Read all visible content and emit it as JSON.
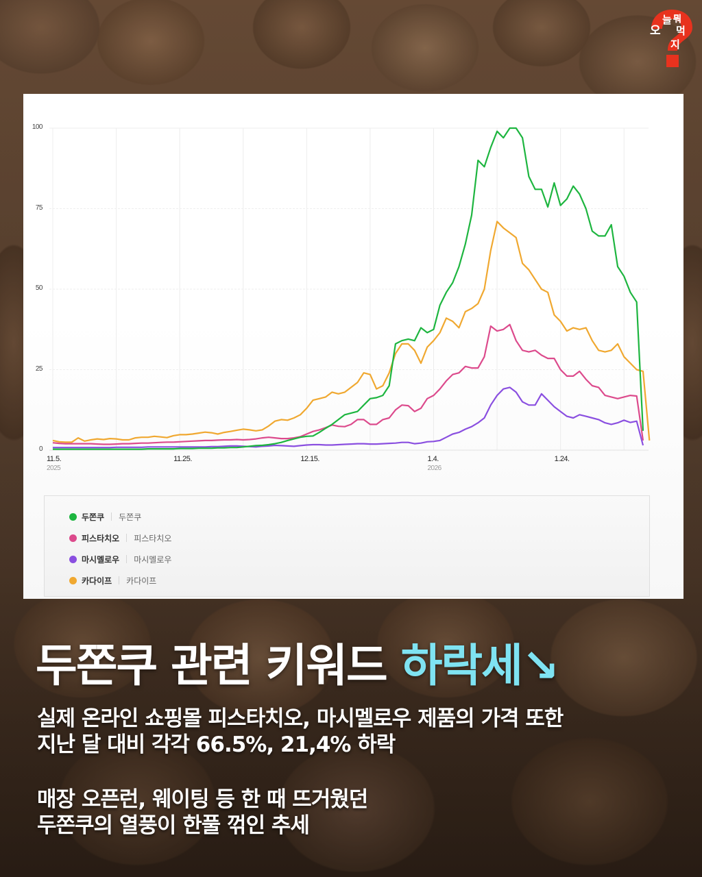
{
  "brand": {
    "logo_text": [
      "오",
      "늘",
      "뭐",
      "먹",
      "지"
    ],
    "logo_color": "#e8321e"
  },
  "headline": {
    "main": "두쫀쿠 관련 키워드 ",
    "accent": "하락세↘",
    "accent_color": "#7fe3f2"
  },
  "body": {
    "paragraph1": [
      "실제 온라인 쇼핑몰 피스타치오, 마시멜로우 제품의 가격 또한",
      "지난 달 대비 각각 66.5%, 21,4% 하락"
    ],
    "paragraph2": [
      "매장 오픈런, 웨이팅 등 한 때 뜨거웠던",
      "두쫀쿠의 열풍이 한풀 꺾인 추세"
    ]
  },
  "legend": [
    {
      "name": "두쫀쿠",
      "sub": "두쫀쿠",
      "color": "#1db53f"
    },
    {
      "name": "피스타치오",
      "sub": "피스타치오",
      "color": "#dc4a8c"
    },
    {
      "name": "마시멜로우",
      "sub": "마시멜로우",
      "color": "#8a4fe0"
    },
    {
      "name": "카다이프",
      "sub": "카다이프",
      "color": "#f0a830"
    }
  ],
  "chart_data": {
    "type": "line",
    "title": "",
    "xlabel": "",
    "ylabel": "",
    "ylim": [
      0,
      100
    ],
    "yticks": [
      "100",
      "75",
      "50",
      "25",
      "0"
    ],
    "xticks": [
      {
        "label": "11.5.",
        "year": "2025"
      },
      {
        "label": "11.25.",
        "year": ""
      },
      {
        "label": "12.15.",
        "year": ""
      },
      {
        "label": "1.4.",
        "year": "2026"
      },
      {
        "label": "1.24.",
        "year": ""
      }
    ],
    "grid": true,
    "legend_position": "bottom",
    "x_start": "2025-11-05",
    "x_step_days": 1,
    "series": [
      {
        "name": "두쫀쿠",
        "color": "#1db53f",
        "values": [
          0.3,
          0.3,
          0.3,
          0.3,
          0.3,
          0.3,
          0.3,
          0.3,
          0.3,
          0.3,
          0.3,
          0.3,
          0.3,
          0.3,
          0.3,
          0.4,
          0.4,
          0.4,
          0.4,
          0.4,
          0.5,
          0.5,
          0.5,
          0.6,
          0.6,
          0.6,
          0.7,
          0.7,
          0.8,
          0.8,
          1.0,
          1.2,
          1.4,
          1.5,
          1.7,
          2.0,
          2.4,
          3.0,
          3.5,
          4.0,
          4.3,
          4.4,
          5.5,
          6.8,
          8.0,
          9.5,
          11,
          11.5,
          12,
          14,
          16,
          16.3,
          17,
          20,
          33,
          34,
          34.5,
          34,
          38,
          36.5,
          37.5,
          45,
          49,
          52,
          57,
          64,
          73,
          90,
          88,
          94,
          99,
          97,
          100,
          100,
          97,
          85,
          81,
          81,
          75.5,
          83,
          76,
          78,
          82,
          79.5,
          75,
          68,
          66.5,
          66.5,
          70,
          57,
          54,
          49,
          46,
          6
        ]
      },
      {
        "name": "피스타치오",
        "color": "#dc4a8c",
        "values": [
          2.3,
          2.1,
          2.0,
          2.0,
          2.0,
          2.0,
          2.0,
          1.9,
          1.8,
          1.8,
          1.9,
          2.0,
          2.0,
          2.1,
          2.2,
          2.2,
          2.3,
          2.4,
          2.5,
          2.5,
          2.6,
          2.7,
          2.8,
          2.9,
          3.0,
          3.0,
          3.1,
          3.2,
          3.2,
          3.3,
          3.2,
          3.3,
          3.5,
          3.8,
          4.0,
          3.8,
          3.6,
          3.6,
          3.8,
          4.2,
          5.0,
          5.8,
          6.3,
          7.0,
          7.8,
          7.4,
          7.3,
          8.0,
          9.5,
          9.5,
          8.0,
          8.0,
          9.5,
          10,
          12.5,
          14,
          13.8,
          12,
          13,
          16,
          17,
          19,
          21.5,
          23.5,
          24,
          26,
          25.5,
          25.5,
          29,
          38.5,
          37,
          37.5,
          39,
          34,
          31,
          30.5,
          31,
          29.5,
          28.5,
          28.5,
          25,
          23,
          23,
          24.5,
          22,
          20,
          19.5,
          17,
          16.5,
          16,
          16.5,
          17,
          16.8,
          3
        ]
      },
      {
        "name": "마시멜로우",
        "color": "#8a4fe0",
        "values": [
          0.8,
          0.8,
          0.8,
          0.8,
          0.8,
          0.8,
          0.8,
          0.8,
          0.8,
          0.8,
          0.9,
          0.9,
          0.9,
          0.9,
          0.9,
          1.0,
          1.0,
          1.0,
          1.0,
          1.0,
          1.0,
          1.0,
          1.0,
          1.0,
          1.0,
          1.1,
          1.1,
          1.2,
          1.3,
          1.3,
          1.2,
          1.1,
          1.0,
          1.2,
          1.3,
          1.5,
          1.4,
          1.3,
          1.2,
          1.4,
          1.6,
          1.7,
          1.7,
          1.6,
          1.6,
          1.7,
          1.8,
          1.9,
          2.0,
          2.0,
          1.9,
          1.9,
          2.0,
          2.1,
          2.2,
          2.4,
          2.4,
          2.0,
          2.2,
          2.6,
          2.7,
          3.0,
          4.0,
          5.0,
          5.5,
          6.5,
          7.3,
          8.5,
          10,
          14,
          17,
          19,
          19.5,
          18,
          15,
          14,
          14,
          17.5,
          15.5,
          13.5,
          12,
          10.5,
          10,
          11,
          10.5,
          10,
          9.5,
          8.5,
          8.0,
          8.5,
          9.3,
          8.6,
          9.0,
          1.5
        ]
      },
      {
        "name": "카다이프",
        "color": "#f0a830",
        "values": [
          3.0,
          2.6,
          2.5,
          2.5,
          3.8,
          2.8,
          3.2,
          3.5,
          3.3,
          3.6,
          3.5,
          3.2,
          3.2,
          3.8,
          4.0,
          4.0,
          4.3,
          4.1,
          3.9,
          4.5,
          4.8,
          4.8,
          5.0,
          5.3,
          5.6,
          5.4,
          5.0,
          5.5,
          5.8,
          6.2,
          6.5,
          6.3,
          6.0,
          6.3,
          7.5,
          9.0,
          9.5,
          9.3,
          10,
          11,
          13,
          15.5,
          16,
          16.5,
          18,
          17.5,
          18,
          19.5,
          21,
          24,
          23.5,
          19,
          20,
          24,
          30,
          33,
          33,
          31,
          27,
          32,
          34,
          36.5,
          41,
          40,
          38,
          43,
          44,
          45.5,
          50,
          62,
          71,
          69,
          67.5,
          66,
          58,
          56,
          53,
          50,
          49,
          42,
          40,
          37,
          38,
          37.5,
          38,
          34,
          31,
          30.5,
          31,
          33,
          29,
          27,
          25,
          24.5,
          3
        ]
      }
    ]
  }
}
